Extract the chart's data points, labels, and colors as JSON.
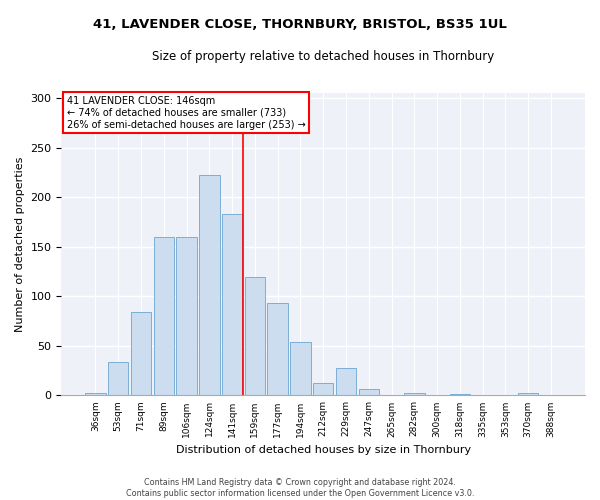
{
  "title": "41, LAVENDER CLOSE, THORNBURY, BRISTOL, BS35 1UL",
  "subtitle": "Size of property relative to detached houses in Thornbury",
  "xlabel": "Distribution of detached houses by size in Thornbury",
  "ylabel": "Number of detached properties",
  "bar_color": "#ccddef",
  "bar_edge_color": "#7aafd4",
  "categories": [
    "36sqm",
    "53sqm",
    "71sqm",
    "89sqm",
    "106sqm",
    "124sqm",
    "141sqm",
    "159sqm",
    "177sqm",
    "194sqm",
    "212sqm",
    "229sqm",
    "247sqm",
    "265sqm",
    "282sqm",
    "300sqm",
    "318sqm",
    "335sqm",
    "353sqm",
    "370sqm",
    "388sqm"
  ],
  "values": [
    2,
    34,
    84,
    160,
    160,
    223,
    183,
    120,
    93,
    54,
    13,
    28,
    6,
    0,
    2,
    0,
    1,
    0,
    0,
    2,
    0
  ],
  "property_line_x": 6.5,
  "annotation_label": "41 LAVENDER CLOSE: 146sqm",
  "annotation_line1": "← 74% of detached houses are smaller (733)",
  "annotation_line2": "26% of semi-detached houses are larger (253) →",
  "footer_line1": "Contains HM Land Registry data © Crown copyright and database right 2024.",
  "footer_line2": "Contains public sector information licensed under the Open Government Licence v3.0.",
  "ylim": [
    0,
    305
  ],
  "background_color": "#eef2f8"
}
